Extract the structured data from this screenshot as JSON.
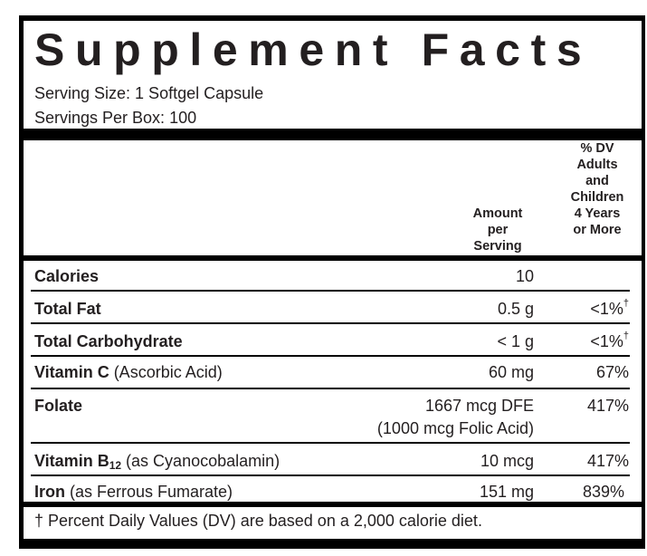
{
  "title": "Supplement Facts",
  "serving_size": "Serving Size: 1 Softgel Capsule",
  "servings_per_box": "Servings Per Box: 100",
  "header": {
    "amount": [
      "Amount",
      "per",
      "Serving"
    ],
    "dv": [
      "% DV",
      "Adults",
      "and",
      "Children",
      "4 Years",
      "or More"
    ]
  },
  "rows": [
    {
      "name": "Calories",
      "detail": "",
      "amount": "10",
      "dv": "",
      "dagger": ""
    },
    {
      "name": "Total Fat",
      "detail": "",
      "amount": "0.5 g",
      "dv": "<1%",
      "dagger": "†"
    },
    {
      "name": "Total Carbohydrate",
      "detail": "",
      "amount": "< 1 g",
      "dv": "<1%",
      "dagger": "†"
    },
    {
      "name": "Vitamin C",
      "detail": " (Ascorbic Acid)",
      "amount": "60 mg",
      "dv": "67%",
      "dagger": ""
    },
    {
      "name": "Folate",
      "detail": "",
      "amount": "1667 mcg DFE",
      "amount2": "(1000 mcg Folic Acid)",
      "dv": "417%",
      "dagger": ""
    },
    {
      "name": "Vitamin B",
      "sub": "12",
      "detail": " (as Cyanocobalamin)",
      "amount": "10 mcg",
      "dv": "417%",
      "dagger": ""
    },
    {
      "name": "Iron",
      "detail": " (as Ferrous Fumarate)",
      "amount": "151 mg",
      "dv": "839%",
      "dagger": ""
    }
  ],
  "footnote": "† Percent Daily Values (DV) are based on a 2,000 calorie diet."
}
